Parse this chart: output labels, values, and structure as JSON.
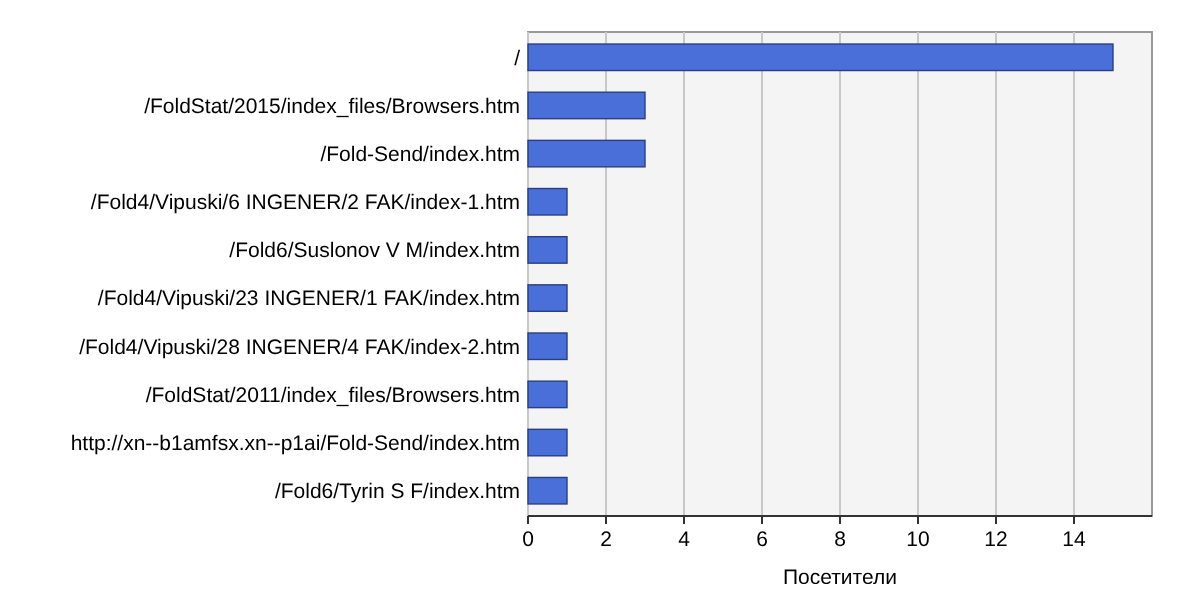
{
  "chart_data": {
    "type": "bar",
    "orientation": "horizontal",
    "xlabel": "Посетители",
    "categories": [
      "/",
      "/FoldStat/2015/index_files/Browsers.htm",
      "/Fold-Send/index.htm",
      "/Fold4/Vipuski/6 INGENER/2 FAK/index-1.htm",
      "/Fold6/Suslonov V M/index.htm",
      "/Fold4/Vipuski/23 INGENER/1 FAK/index.htm",
      "/Fold4/Vipuski/28 INGENER/4 FAK/index-2.htm",
      "/FoldStat/2011/index_files/Browsers.htm",
      "http://xn--b1amfsx.xn--p1ai/Fold-Send/index.htm",
      "/Fold6/Tyrin S F/index.htm"
    ],
    "values": [
      15,
      3,
      3,
      1,
      1,
      1,
      1,
      1,
      1,
      1
    ],
    "color": "#4a6fd8",
    "xlim": [
      0,
      16
    ],
    "xticks": [
      0,
      2,
      4,
      6,
      8,
      10,
      12,
      14
    ],
    "grid": "x"
  }
}
